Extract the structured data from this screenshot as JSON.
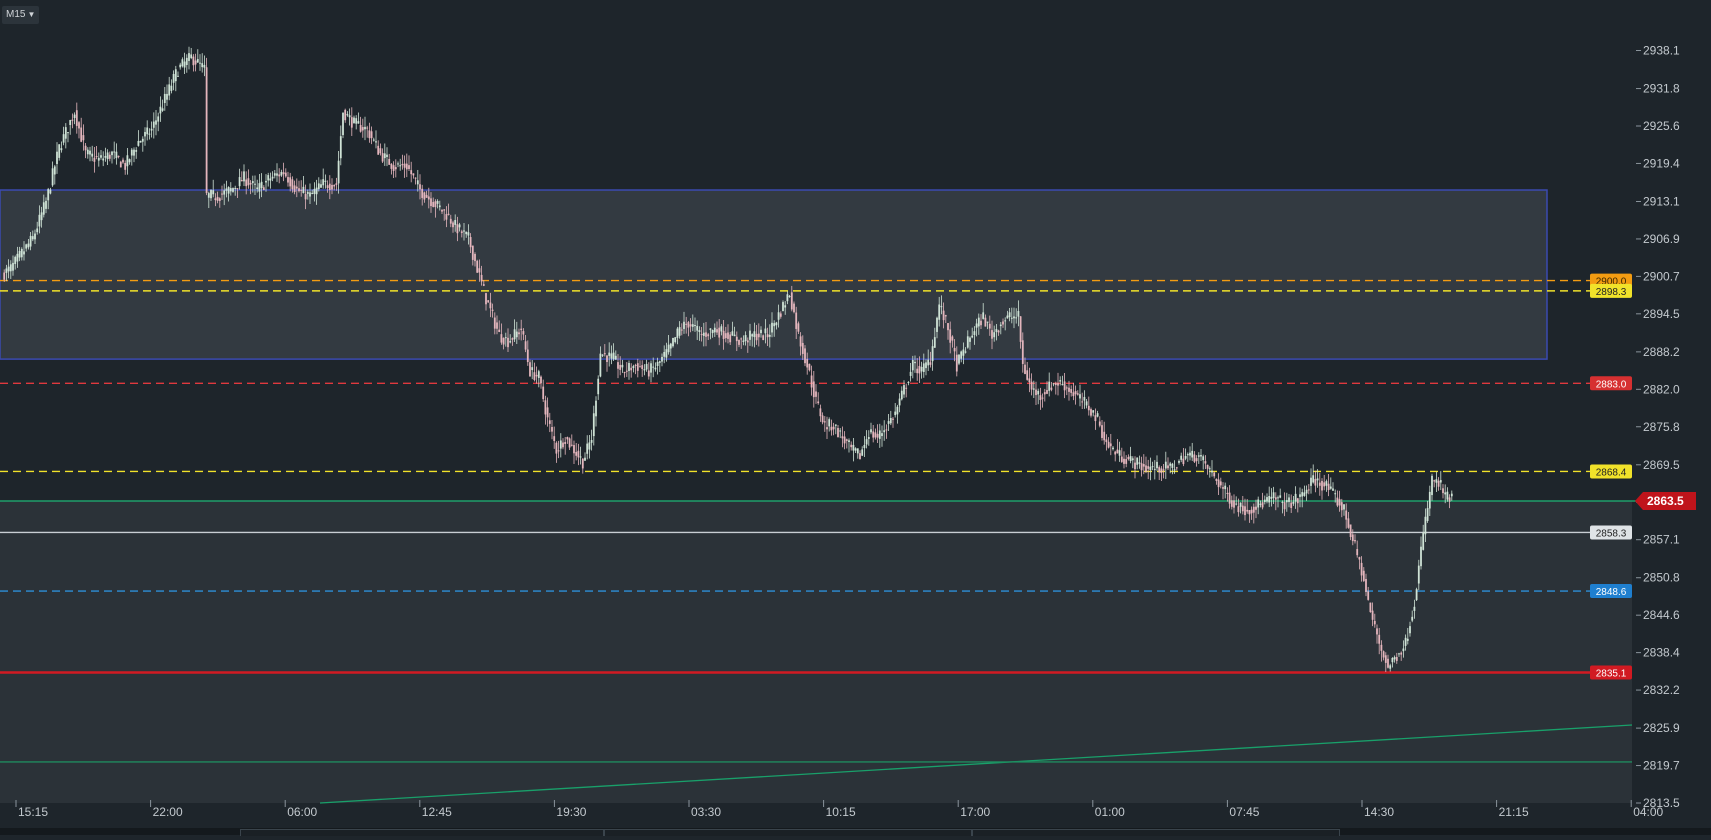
{
  "toolbar": {
    "timeframe_label": "M15"
  },
  "chart_data": {
    "type": "candlestick",
    "ylim": [
      2813.5,
      2941.0
    ],
    "y_ticks": [
      "2938.1",
      "2931.8",
      "2925.6",
      "2919.4",
      "2913.1",
      "2906.9",
      "2900.7",
      "2894.5",
      "2888.2",
      "2882.0",
      "2875.8",
      "2869.5",
      "2863.3",
      "2857.1",
      "2850.8",
      "2844.6",
      "2838.4",
      "2832.2",
      "2825.9",
      "2819.7",
      "2813.5"
    ],
    "x_ticks": [
      "15:15",
      "22:00",
      "06:00",
      "12:45",
      "19:30",
      "03:30",
      "10:15",
      "17:00",
      "01:00",
      "07:45",
      "14:30",
      "21:15",
      "04:00"
    ],
    "current_price": {
      "value": 2863.5,
      "label": "2863.5",
      "color": "#c0141b"
    },
    "zone": {
      "top": 2915.0,
      "bottom": 2887.0,
      "color": "#3b4ab0"
    },
    "levels": [
      {
        "name": "2900.0",
        "value": 2900.0,
        "style": "dashed",
        "color": "#f39c12",
        "label_bg": "#f39c12",
        "label_fg": "#3a2600"
      },
      {
        "name": "2898.3",
        "value": 2898.3,
        "style": "dashed",
        "color": "#f1e22a",
        "label_bg": "#f1e22a",
        "label_fg": "#222"
      },
      {
        "name": "2883.0",
        "value": 2883.0,
        "style": "dashed",
        "color": "#e0393e",
        "label_bg": "#d63031",
        "label_fg": "#fff"
      },
      {
        "name": "2868.4",
        "value": 2868.4,
        "style": "dashed",
        "color": "#f1e22a",
        "label_bg": "#f1e22a",
        "label_fg": "#222"
      },
      {
        "name": "2858.3",
        "value": 2858.3,
        "style": "solid",
        "color": "#c9ced3",
        "label_bg": "#dfe3e6",
        "label_fg": "#222"
      },
      {
        "name": "2848.6",
        "value": 2848.6,
        "style": "dashed",
        "color": "#2d8fd8",
        "label_bg": "#1f7fcf",
        "label_fg": "#fff"
      },
      {
        "name": "2835.1",
        "value": 2835.1,
        "style": "solid",
        "color": "#d11a22",
        "label_bg": "#d11a22",
        "label_fg": "#fff"
      }
    ],
    "anchors": [
      [
        0,
        2901
      ],
      [
        4,
        2902
      ],
      [
        8,
        2904
      ],
      [
        14,
        2907
      ],
      [
        20,
        2913
      ],
      [
        26,
        2922
      ],
      [
        33,
        2928
      ],
      [
        38,
        2921
      ],
      [
        44,
        2920
      ],
      [
        50,
        2921
      ],
      [
        56,
        2919
      ],
      [
        62,
        2923
      ],
      [
        68,
        2925
      ],
      [
        74,
        2930
      ],
      [
        80,
        2935
      ],
      [
        86,
        2937
      ],
      [
        92,
        2935
      ],
      [
        93,
        2914
      ],
      [
        98,
        2914
      ],
      [
        104,
        2915
      ],
      [
        110,
        2917
      ],
      [
        116,
        2915
      ],
      [
        122,
        2917
      ],
      [
        128,
        2918
      ],
      [
        134,
        2915
      ],
      [
        140,
        2914
      ],
      [
        146,
        2916
      ],
      [
        152,
        2916
      ],
      [
        155,
        2928
      ],
      [
        160,
        2926
      ],
      [
        166,
        2925
      ],
      [
        172,
        2921
      ],
      [
        178,
        2919
      ],
      [
        184,
        2919
      ],
      [
        190,
        2915
      ],
      [
        196,
        2913
      ],
      [
        202,
        2911
      ],
      [
        206,
        2909
      ],
      [
        212,
        2907
      ],
      [
        216,
        2902
      ],
      [
        220,
        2897
      ],
      [
        226,
        2891
      ],
      [
        230,
        2890
      ],
      [
        236,
        2892
      ],
      [
        240,
        2885
      ],
      [
        244,
        2884
      ],
      [
        248,
        2877
      ],
      [
        252,
        2872
      ],
      [
        256,
        2874
      ],
      [
        260,
        2872
      ],
      [
        264,
        2870
      ],
      [
        268,
        2874
      ],
      [
        272,
        2888
      ],
      [
        278,
        2887
      ],
      [
        282,
        2885
      ],
      [
        288,
        2886
      ],
      [
        294,
        2885
      ],
      [
        298,
        2886
      ],
      [
        304,
        2889
      ],
      [
        308,
        2892
      ],
      [
        312,
        2893
      ],
      [
        318,
        2891
      ],
      [
        324,
        2892
      ],
      [
        330,
        2891
      ],
      [
        336,
        2890
      ],
      [
        342,
        2891
      ],
      [
        348,
        2891
      ],
      [
        354,
        2895
      ],
      [
        358,
        2898
      ],
      [
        362,
        2891
      ],
      [
        366,
        2886
      ],
      [
        370,
        2880
      ],
      [
        374,
        2876
      ],
      [
        378,
        2876
      ],
      [
        382,
        2874
      ],
      [
        386,
        2872
      ],
      [
        390,
        2871
      ],
      [
        394,
        2875
      ],
      [
        398,
        2874
      ],
      [
        402,
        2876
      ],
      [
        406,
        2878
      ],
      [
        410,
        2882
      ],
      [
        414,
        2886
      ],
      [
        418,
        2885
      ],
      [
        422,
        2887
      ],
      [
        426,
        2896
      ],
      [
        430,
        2892
      ],
      [
        434,
        2886
      ],
      [
        438,
        2889
      ],
      [
        442,
        2892
      ],
      [
        446,
        2894
      ],
      [
        450,
        2891
      ],
      [
        454,
        2893
      ],
      [
        458,
        2894
      ],
      [
        462,
        2894
      ],
      [
        464,
        2886
      ],
      [
        468,
        2882
      ],
      [
        472,
        2881
      ],
      [
        478,
        2883
      ],
      [
        482,
        2883
      ],
      [
        488,
        2881
      ],
      [
        494,
        2879
      ],
      [
        498,
        2877
      ],
      [
        502,
        2873
      ],
      [
        508,
        2871
      ],
      [
        514,
        2870
      ],
      [
        520,
        2869
      ],
      [
        526,
        2869
      ],
      [
        532,
        2869
      ],
      [
        538,
        2871
      ],
      [
        544,
        2871
      ],
      [
        548,
        2869
      ],
      [
        554,
        2866
      ],
      [
        560,
        2863
      ],
      [
        566,
        2862
      ],
      [
        572,
        2863
      ],
      [
        578,
        2864
      ],
      [
        584,
        2863
      ],
      [
        590,
        2864
      ],
      [
        596,
        2867
      ],
      [
        602,
        2866
      ],
      [
        606,
        2864
      ],
      [
        610,
        2862
      ],
      [
        614,
        2857
      ],
      [
        618,
        2852
      ],
      [
        622,
        2845
      ],
      [
        626,
        2840
      ],
      [
        630,
        2836
      ],
      [
        634,
        2838
      ],
      [
        638,
        2840
      ],
      [
        642,
        2847
      ],
      [
        646,
        2858
      ],
      [
        650,
        2867
      ],
      [
        654,
        2866
      ],
      [
        656,
        2864
      ]
    ]
  }
}
